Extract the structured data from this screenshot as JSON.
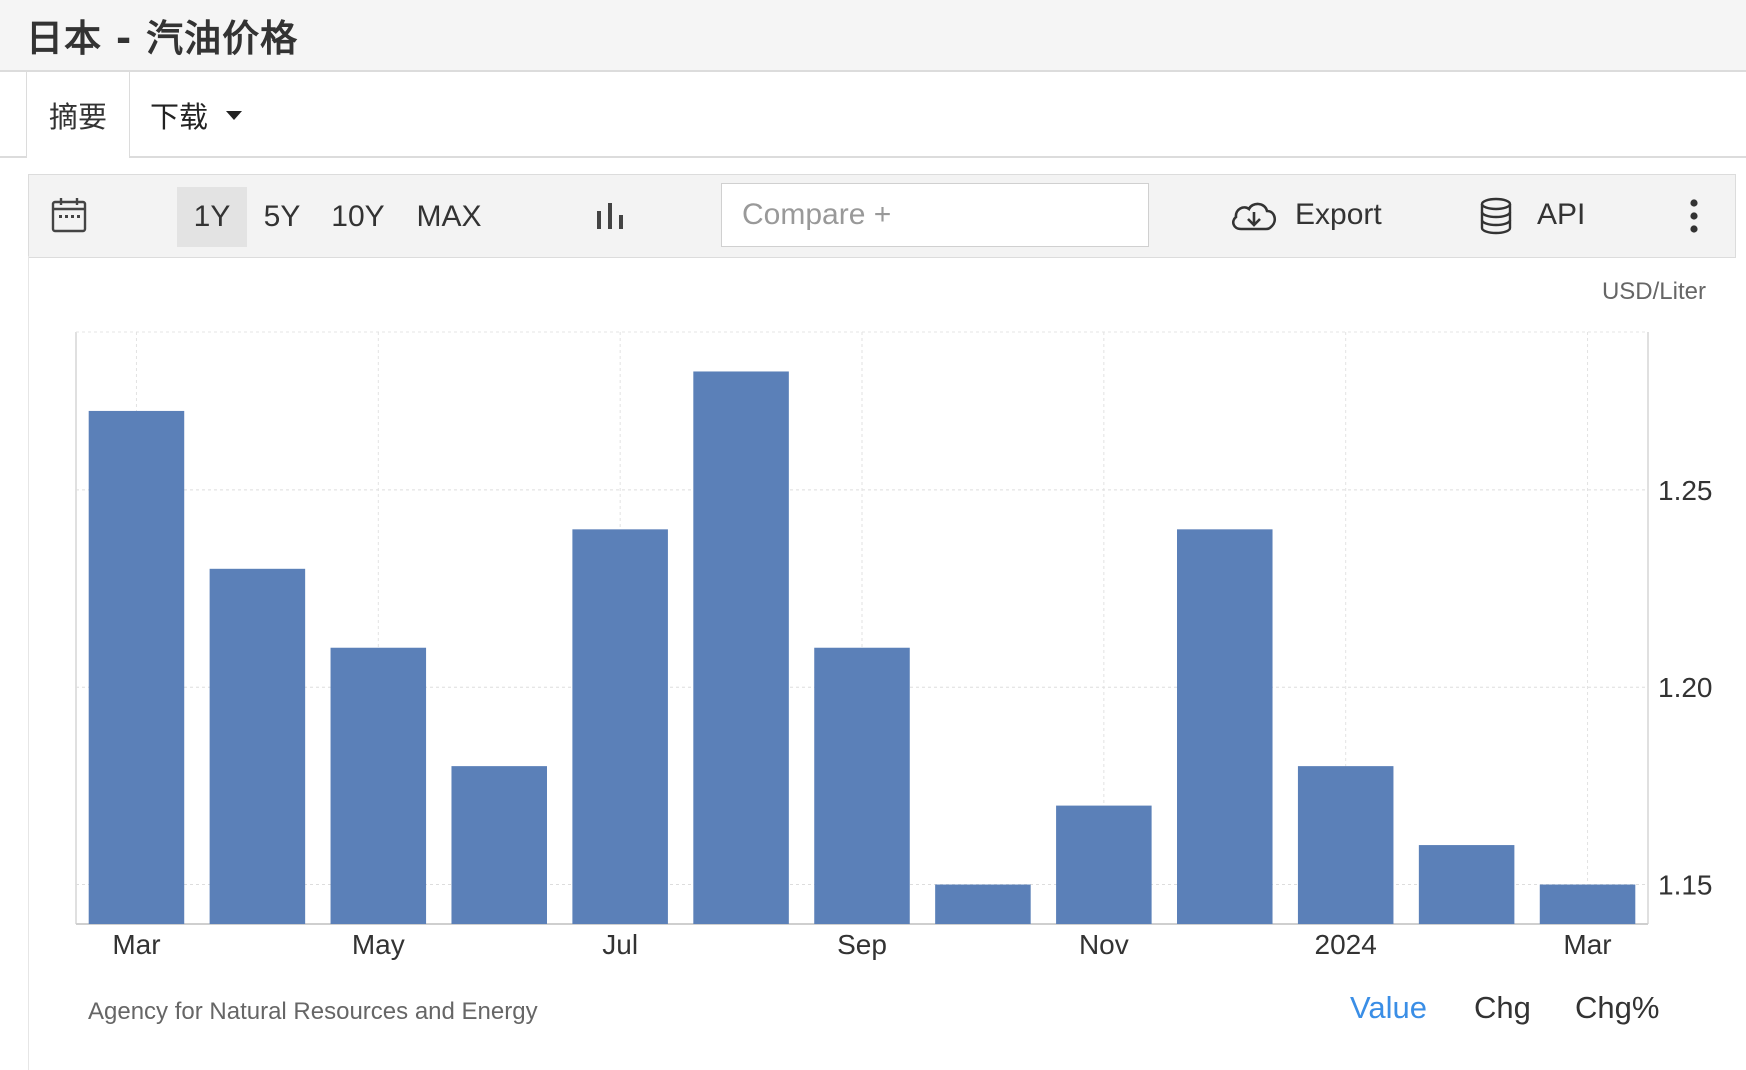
{
  "page_title": "日本 - 汽油价格",
  "tabs": {
    "summary": "摘要",
    "download": "下载"
  },
  "toolbar": {
    "ranges": [
      "1Y",
      "5Y",
      "10Y",
      "MAX"
    ],
    "active_range": "1Y",
    "compare_placeholder": "Compare +",
    "export_label": "Export",
    "api_label": "API"
  },
  "chart_data": {
    "type": "bar",
    "unit": "USD/Liter",
    "x_tick_labels": [
      "Mar",
      "May",
      "Jul",
      "Sep",
      "Nov",
      "2024",
      "Mar"
    ],
    "values": [
      1.27,
      1.23,
      1.21,
      1.18,
      1.24,
      1.28,
      1.21,
      1.15,
      1.17,
      1.24,
      1.18,
      1.16,
      1.15
    ],
    "y_ticks": [
      1.15,
      1.2,
      1.25
    ],
    "ylim": [
      1.14,
      1.29
    ],
    "bar_color": "#5b80b8",
    "grid": true
  },
  "source": "Agency for Natural Resources and Energy",
  "modes": [
    "Value",
    "Chg",
    "Chg%"
  ],
  "active_mode": "Value",
  "accent_color": "#3a8ee6"
}
